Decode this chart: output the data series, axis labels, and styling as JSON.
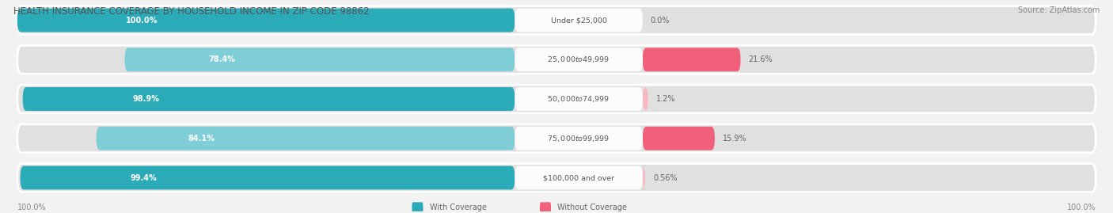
{
  "title": "HEALTH INSURANCE COVERAGE BY HOUSEHOLD INCOME IN ZIP CODE 98862",
  "source": "Source: ZipAtlas.com",
  "categories": [
    "Under $25,000",
    "$25,000 to $49,999",
    "$50,000 to $74,999",
    "$75,000 to $99,999",
    "$100,000 and over"
  ],
  "with_coverage": [
    100.0,
    78.4,
    98.9,
    84.1,
    99.4
  ],
  "without_coverage": [
    0.0,
    21.6,
    1.2,
    15.9,
    0.56
  ],
  "with_coverage_labels": [
    "100.0%",
    "78.4%",
    "98.9%",
    "84.1%",
    "99.4%"
  ],
  "without_coverage_labels": [
    "0.0%",
    "21.6%",
    "1.2%",
    "15.9%",
    "0.56%"
  ],
  "color_with": [
    "#2BABB8",
    "#7FCDD6",
    "#2BABB8",
    "#7FCDD6",
    "#2BABB8"
  ],
  "color_without": [
    "#F7B8C4",
    "#F0607A",
    "#F7B8C4",
    "#F0607A",
    "#F7B8C4"
  ],
  "bg_color": "#f2f2f2",
  "row_bg_color": "#e0e0e0",
  "legend_with": "With Coverage",
  "legend_without": "Without Coverage",
  "legend_with_color": "#2BABB8",
  "legend_without_color": "#F0607A",
  "left_axis_label": "100.0%",
  "right_axis_label": "100.0%",
  "title_color": "#555555",
  "source_color": "#888888",
  "label_inside_color": "#ffffff",
  "label_outside_color": "#666666",
  "cat_label_color": "#555555"
}
